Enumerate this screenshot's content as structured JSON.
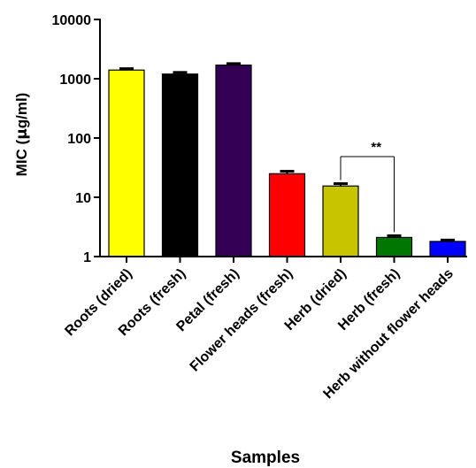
{
  "chart_data": {
    "type": "bar",
    "title": "",
    "xlabel": "Samples",
    "ylabel_parts": [
      "MIC (",
      "μ",
      "g/ml)"
    ],
    "y_scale": "log",
    "ylim": [
      1,
      10000
    ],
    "y_ticks": [
      1,
      10,
      100,
      1000,
      10000
    ],
    "y_tick_labels": [
      "1",
      "10",
      "100",
      "1000",
      "10000"
    ],
    "grid": false,
    "legend": "none",
    "categories": [
      "Roots (dried)",
      "Roots (fresh)",
      "Petal (fresh)",
      "Flower heads (fresh)",
      "Herb (dried)",
      "Herb (fresh)",
      "Herb without flower heads"
    ],
    "values": [
      1400,
      1200,
      1700,
      25,
      15.5,
      2.1,
      1.8
    ],
    "error_upper": [
      1480,
      1280,
      1800,
      27.5,
      17,
      2.25,
      1.9
    ],
    "colors": [
      "#ffff00",
      "#000000",
      "#330055",
      "#ff0000",
      "#c8c400",
      "#007700",
      "#0000ff"
    ],
    "annotations": [
      {
        "text": "**",
        "between": [
          "Herb (dried)",
          "Herb (fresh)"
        ]
      }
    ]
  }
}
